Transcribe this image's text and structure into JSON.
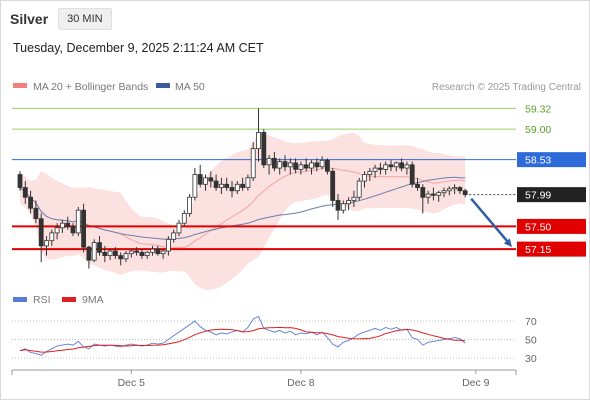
{
  "header": {
    "symbol": "Silver",
    "timeframe": "30 MIN"
  },
  "timestamp": "Tuesday, December 9, 2025 2:11:24 AM CET",
  "legend": {
    "bollinger": {
      "label": "MA 20 + Bollinger Bands",
      "color": "#f08080"
    },
    "ma50": {
      "label": "MA 50",
      "color": "#3a5a9a"
    },
    "rsi": {
      "label": "RSI",
      "color": "#5b7bd5"
    },
    "rsi_ma": {
      "label": "9MA",
      "color": "#e02020"
    }
  },
  "credit": "Research © 2025 Trading Central",
  "chart_data": {
    "type": "candlestick",
    "ylim": [
      56.55,
      59.45
    ],
    "levels": [
      {
        "label": "59.32",
        "value": 59.32,
        "kind": "target",
        "color": "#99cc66"
      },
      {
        "label": "59.00",
        "value": 59.0,
        "kind": "target",
        "color": "#99cc66"
      },
      {
        "label": "58.53",
        "value": 58.53,
        "kind": "resistance",
        "color": "#2e6bd9"
      },
      {
        "label": "57.99",
        "value": 57.99,
        "kind": "last",
        "color": "#222222"
      },
      {
        "label": "57.50",
        "value": 57.5,
        "kind": "support",
        "color": "#e00000"
      },
      {
        "label": "57.15",
        "value": 57.15,
        "kind": "support",
        "color": "#e00000"
      }
    ],
    "x_ticks": [
      {
        "label": "Dec 5",
        "index": 21
      },
      {
        "label": "Dec 8",
        "index": 53
      },
      {
        "label": "Dec 9",
        "index": 86
      }
    ],
    "candles": [
      [
        58.3,
        58.35,
        58.05,
        58.1
      ],
      [
        58.1,
        58.2,
        57.85,
        57.95
      ],
      [
        57.95,
        58.05,
        57.7,
        57.78
      ],
      [
        57.78,
        57.9,
        57.55,
        57.62
      ],
      [
        57.62,
        57.7,
        56.95,
        57.2
      ],
      [
        57.2,
        57.35,
        57.05,
        57.28
      ],
      [
        57.28,
        57.45,
        57.2,
        57.4
      ],
      [
        57.4,
        57.55,
        57.3,
        57.48
      ],
      [
        57.48,
        57.6,
        57.4,
        57.55
      ],
      [
        57.55,
        57.65,
        57.45,
        57.5
      ],
      [
        57.5,
        57.55,
        57.35,
        57.4
      ],
      [
        57.4,
        57.8,
        57.35,
        57.75
      ],
      [
        57.75,
        57.85,
        57.1,
        57.18
      ],
      [
        57.18,
        57.2,
        56.85,
        56.98
      ],
      [
        56.98,
        57.3,
        56.95,
        57.25
      ],
      [
        57.25,
        57.35,
        57.05,
        57.1
      ],
      [
        57.1,
        57.2,
        56.95,
        57.05
      ],
      [
        57.05,
        57.15,
        56.98,
        57.12
      ],
      [
        57.12,
        57.18,
        57.0,
        57.05
      ],
      [
        57.05,
        57.1,
        56.9,
        57.0
      ],
      [
        57.0,
        57.12,
        56.95,
        57.08
      ],
      [
        57.08,
        57.15,
        57.02,
        57.12
      ],
      [
        57.12,
        57.18,
        57.05,
        57.1
      ],
      [
        57.1,
        57.15,
        57.0,
        57.05
      ],
      [
        57.05,
        57.12,
        57.0,
        57.1
      ],
      [
        57.1,
        57.2,
        57.05,
        57.15
      ],
      [
        57.15,
        57.2,
        57.05,
        57.08
      ],
      [
        57.08,
        57.15,
        57.0,
        57.12
      ],
      [
        57.12,
        57.35,
        57.05,
        57.3
      ],
      [
        57.3,
        57.45,
        57.25,
        57.4
      ],
      [
        57.4,
        57.6,
        57.35,
        57.55
      ],
      [
        57.55,
        57.75,
        57.5,
        57.7
      ],
      [
        57.7,
        58.0,
        57.65,
        57.95
      ],
      [
        57.95,
        58.4,
        57.9,
        58.3
      ],
      [
        58.3,
        58.45,
        58.1,
        58.15
      ],
      [
        58.15,
        58.3,
        58.05,
        58.25
      ],
      [
        58.25,
        58.35,
        58.1,
        58.2
      ],
      [
        58.2,
        58.3,
        58.05,
        58.1
      ],
      [
        58.1,
        58.25,
        58.0,
        58.15
      ],
      [
        58.15,
        58.25,
        58.05,
        58.1
      ],
      [
        58.1,
        58.2,
        57.95,
        58.05
      ],
      [
        58.05,
        58.2,
        58.0,
        58.15
      ],
      [
        58.15,
        58.25,
        58.05,
        58.1
      ],
      [
        58.1,
        58.3,
        58.05,
        58.25
      ],
      [
        58.25,
        58.8,
        58.2,
        58.7
      ],
      [
        58.7,
        59.32,
        58.5,
        58.95
      ],
      [
        58.95,
        59.0,
        58.4,
        58.45
      ],
      [
        58.45,
        58.6,
        58.3,
        58.55
      ],
      [
        58.55,
        58.65,
        58.35,
        58.4
      ],
      [
        58.4,
        58.55,
        58.3,
        58.5
      ],
      [
        58.5,
        58.6,
        58.35,
        58.42
      ],
      [
        58.42,
        58.55,
        58.3,
        58.48
      ],
      [
        58.48,
        58.55,
        58.32,
        58.38
      ],
      [
        58.38,
        58.5,
        58.3,
        58.45
      ],
      [
        58.45,
        58.55,
        58.35,
        58.4
      ],
      [
        58.4,
        58.52,
        58.3,
        58.48
      ],
      [
        58.48,
        58.55,
        58.35,
        58.42
      ],
      [
        58.42,
        58.58,
        58.38,
        58.52
      ],
      [
        58.52,
        58.55,
        58.3,
        58.35
      ],
      [
        58.35,
        58.4,
        57.8,
        57.9
      ],
      [
        57.9,
        58.0,
        57.6,
        57.75
      ],
      [
        57.75,
        57.9,
        57.7,
        57.85
      ],
      [
        57.85,
        57.95,
        57.75,
        57.9
      ],
      [
        57.9,
        58.05,
        57.8,
        57.95
      ],
      [
        57.95,
        58.25,
        57.9,
        58.2
      ],
      [
        58.2,
        58.35,
        58.1,
        58.3
      ],
      [
        58.3,
        58.4,
        58.2,
        58.35
      ],
      [
        58.35,
        58.45,
        58.25,
        58.4
      ],
      [
        58.4,
        58.48,
        58.3,
        58.38
      ],
      [
        58.38,
        58.5,
        58.3,
        58.45
      ],
      [
        58.45,
        58.52,
        58.35,
        58.42
      ],
      [
        58.42,
        58.5,
        58.35,
        58.48
      ],
      [
        58.48,
        58.55,
        58.35,
        58.4
      ],
      [
        58.4,
        58.5,
        58.3,
        58.45
      ],
      [
        58.45,
        58.5,
        58.1,
        58.15
      ],
      [
        58.15,
        58.25,
        58.05,
        58.1
      ],
      [
        58.1,
        58.15,
        57.7,
        57.95
      ],
      [
        57.95,
        58.05,
        57.85,
        58.0
      ],
      [
        58.0,
        58.1,
        57.9,
        57.98
      ],
      [
        57.98,
        58.05,
        57.88,
        58.02
      ],
      [
        58.02,
        58.1,
        57.95,
        58.05
      ],
      [
        58.05,
        58.12,
        57.98,
        58.08
      ],
      [
        58.08,
        58.15,
        58.0,
        58.1
      ],
      [
        58.1,
        58.12,
        58.0,
        58.05
      ],
      [
        58.05,
        58.08,
        57.95,
        57.99
      ]
    ],
    "rsi": [
      38,
      40,
      36,
      35,
      33,
      37,
      40,
      43,
      44,
      45,
      44,
      48,
      42,
      40,
      45,
      44,
      43,
      44,
      43,
      42,
      44,
      45,
      44,
      43,
      44,
      46,
      45,
      46,
      50,
      54,
      58,
      62,
      66,
      70,
      64,
      60,
      58,
      55,
      57,
      56,
      58,
      60,
      58,
      63,
      72,
      75,
      62,
      60,
      58,
      60,
      57,
      59,
      55,
      57,
      56,
      58,
      55,
      58,
      52,
      45,
      42,
      47,
      49,
      52,
      56,
      58,
      60,
      62,
      60,
      63,
      61,
      63,
      60,
      61,
      52,
      50,
      44,
      47,
      48,
      49,
      50,
      51,
      52,
      51,
      46
    ],
    "rsi_ticks": [
      70,
      50,
      30
    ]
  }
}
